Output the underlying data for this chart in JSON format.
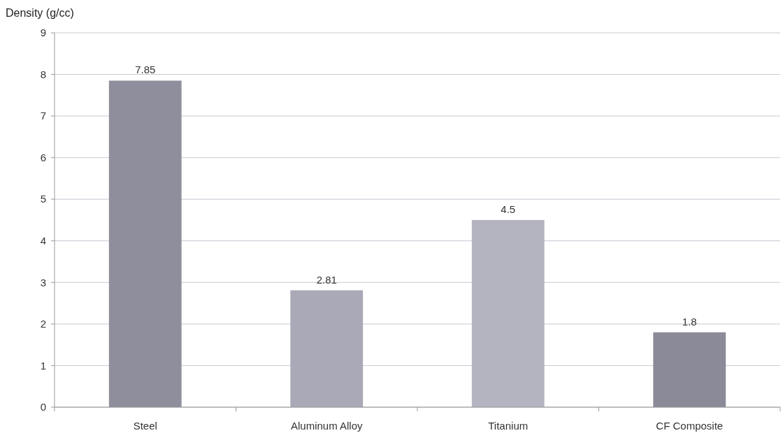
{
  "chart_data": {
    "type": "bar",
    "ylabel": "Density (g/cc)",
    "categories": [
      "Steel",
      "Aluminum Alloy",
      "Titanium",
      "CF Composite"
    ],
    "values": [
      7.85,
      2.81,
      4.5,
      1.8
    ],
    "colors": [
      "#8e8e9c",
      "#a9a9b8",
      "#b4b4c0",
      "#8a8a98"
    ],
    "ylim": [
      0,
      9
    ],
    "yticks": [
      0,
      1,
      2,
      3,
      4,
      5,
      6,
      7,
      8,
      9
    ],
    "grid": "y",
    "data_labels": true
  }
}
